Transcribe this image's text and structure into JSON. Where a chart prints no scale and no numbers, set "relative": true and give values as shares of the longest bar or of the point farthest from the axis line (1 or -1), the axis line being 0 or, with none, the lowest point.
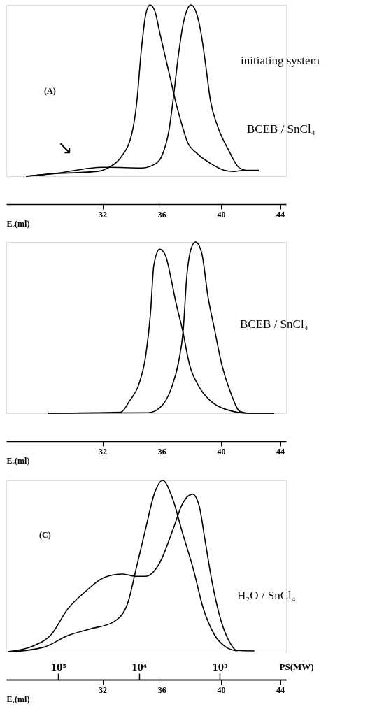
{
  "chart_data": [
    {
      "type": "line",
      "relative": true,
      "xlabel": "Eᵥ(ml)",
      "xlim": [
        25.5,
        44.4
      ],
      "xticks": [
        32,
        36,
        40,
        44
      ],
      "annotations": [
        "initiating system",
        "(A)",
        "BCEB / SnCl₄",
        "↘"
      ],
      "series": [
        {
          "color": "#000000",
          "x": [
            26.83,
            28.86,
            31.66,
            32.44,
            33.22,
            34.0,
            34.31,
            34.62,
            34.93,
            35.21,
            35.55,
            35.86,
            36.18,
            36.57,
            36.96,
            37.43,
            37.73,
            38.36,
            39.29,
            40.23,
            40.85,
            41.63,
            42.56
          ],
          "values": [
            0,
            0.015,
            0.028,
            0.052,
            0.108,
            0.255,
            0.428,
            0.735,
            0.948,
            1.0,
            0.96,
            0.84,
            0.72,
            0.575,
            0.428,
            0.281,
            0.201,
            0.135,
            0.075,
            0.035,
            0.028,
            0.035,
            0.035
          ]
        },
        {
          "color": "#000000",
          "x": [
            26.83,
            28.86,
            31.99,
            32.44,
            34.62,
            35.55,
            36.02,
            36.49,
            36.8,
            37.11,
            37.43,
            37.73,
            37.97,
            38.36,
            38.67,
            38.98,
            39.29,
            39.76,
            40.54,
            41.16,
            41.63
          ],
          "values": [
            0,
            0.017,
            0.052,
            0.052,
            0.048,
            0.071,
            0.121,
            0.268,
            0.468,
            0.695,
            0.881,
            0.975,
            1.0,
            0.948,
            0.828,
            0.641,
            0.441,
            0.295,
            0.148,
            0.055,
            0.035
          ]
        }
      ]
    },
    {
      "type": "line",
      "relative": true,
      "xlabel": "Eᵥ(ml)",
      "xlim": [
        25.5,
        44.4
      ],
      "xticks": [
        32,
        36,
        40,
        44
      ],
      "annotations": [
        "BCEB / SnCl₄"
      ],
      "series": [
        {
          "color": "#000000",
          "x": [
            28.34,
            33.22,
            33.84,
            34.47,
            34.93,
            35.24,
            35.47,
            35.86,
            36.25,
            36.64,
            36.94,
            37.41,
            37.87,
            38.5,
            39.27,
            40.28,
            41.91,
            43.6
          ],
          "values": [
            0,
            0.006,
            0.074,
            0.173,
            0.342,
            0.583,
            0.866,
            0.958,
            0.922,
            0.781,
            0.653,
            0.484,
            0.286,
            0.158,
            0.074,
            0.024,
            0,
            0
          ]
        },
        {
          "color": "#000000",
          "x": [
            28.34,
            35.08,
            35.86,
            36.64,
            37.14,
            37.45,
            37.69,
            38.0,
            38.28,
            38.7,
            39.12,
            39.58,
            40.05,
            40.67,
            41.29,
            41.91,
            43.6
          ],
          "values": [
            0,
            0.003,
            0.031,
            0.144,
            0.3,
            0.484,
            0.795,
            0.965,
            1.0,
            0.936,
            0.682,
            0.484,
            0.286,
            0.116,
            0.01,
            0,
            0
          ]
        }
      ]
    },
    {
      "type": "line",
      "relative": true,
      "xlabel": "Eᵥ(ml)",
      "xlim": [
        25.5,
        44.4
      ],
      "xticks": [
        32,
        36,
        40,
        44
      ],
      "x2label": "PS(MW)",
      "log": "x2",
      "x2lim": [
        440000,
        150
      ],
      "x2ticks": [
        {
          "value": 100000,
          "label": "10⁵"
        },
        {
          "value": 10000,
          "label": "10⁴"
        },
        {
          "value": 1000,
          "label": "10³"
        }
      ],
      "annotations": [
        "(C)",
        "H₂O / SnCl₄"
      ],
      "series": [
        {
          "color": "#000000",
          "x": [
            25.6,
            27.3,
            28.54,
            29.63,
            30.87,
            32.1,
            33.35,
            34.28,
            34.9,
            35.83,
            36.76,
            37.38,
            38.08,
            38.54,
            38.93,
            39.4,
            40.01,
            40.48,
            41.1,
            42.26
          ],
          "values": [
            0,
            0.033,
            0.1,
            0.247,
            0.353,
            0.433,
            0.453,
            0.44,
            0.44,
            0.513,
            0.713,
            0.86,
            0.92,
            0.847,
            0.647,
            0.407,
            0.18,
            0.073,
            0.007,
            0.004
          ]
        },
        {
          "color": "#000000",
          "x": [
            25.9,
            28.08,
            29.63,
            31.18,
            32.73,
            33.66,
            34.28,
            34.9,
            35.52,
            36.06,
            36.76,
            37.38,
            38.16,
            38.78,
            39.55,
            40.33,
            41.1
          ],
          "values": [
            0,
            0.027,
            0.093,
            0.133,
            0.173,
            0.273,
            0.487,
            0.713,
            0.927,
            1.0,
            0.887,
            0.7,
            0.473,
            0.26,
            0.1,
            0.027,
            0.004
          ]
        }
      ]
    }
  ]
}
